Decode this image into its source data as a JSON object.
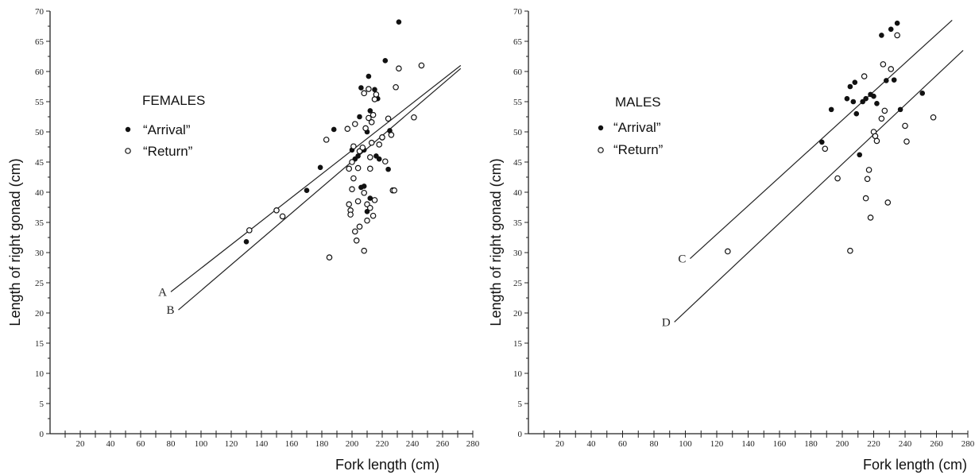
{
  "chart_data": [
    {
      "type": "scatter",
      "title": "",
      "panel_label": "FEMALES",
      "xlabel": "Fork length (cm)",
      "ylabel": "Length of right gonad (cm)",
      "xlim": [
        0,
        280
      ],
      "ylim": [
        0,
        70
      ],
      "x_ticks": [
        "20",
        "40",
        "60",
        "80",
        "100",
        "120",
        "140",
        "160",
        "180",
        "200",
        "220",
        "240",
        "260",
        "280"
      ],
      "y_ticks": [
        "0",
        "5",
        "10",
        "15",
        "20",
        "25",
        "30",
        "35",
        "40",
        "45",
        "50",
        "55",
        "60",
        "65",
        "70"
      ],
      "legend_position": "upper-left",
      "series": [
        {
          "name": "“Arrival”",
          "marker": "filled-circle",
          "points": [
            [
              130,
              31.8
            ],
            [
              170,
              40.3
            ],
            [
              179,
              44.1
            ],
            [
              188,
              50.4
            ],
            [
              200,
              47
            ],
            [
              202,
              45.5
            ],
            [
              204,
              46
            ],
            [
              205,
              52.5
            ],
            [
              206,
              57.3
            ],
            [
              208,
              47
            ],
            [
              208,
              41
            ],
            [
              210,
              50
            ],
            [
              211,
              59.2
            ],
            [
              212,
              53.5
            ],
            [
              212,
              39
            ],
            [
              210,
              36.8
            ],
            [
              215,
              57
            ],
            [
              216,
              46
            ],
            [
              217,
              55.5
            ],
            [
              218,
              45.5
            ],
            [
              220,
              49
            ],
            [
              222,
              61.8
            ],
            [
              224,
              43.8
            ],
            [
              225,
              50.2
            ],
            [
              231,
              68.2
            ],
            [
              206,
              40.8
            ]
          ]
        },
        {
          "name": "“Return”",
          "marker": "open-circle",
          "points": [
            [
              132,
              33.7
            ],
            [
              150,
              37
            ],
            [
              154,
              36
            ],
            [
              185,
              29.2
            ],
            [
              183,
              48.7
            ],
            [
              197,
              50.5
            ],
            [
              198,
              43.9
            ],
            [
              198,
              38
            ],
            [
              199,
              37
            ],
            [
              199,
              36.3
            ],
            [
              200,
              40.5
            ],
            [
              200,
              45
            ],
            [
              201,
              47.6
            ],
            [
              201,
              42.3
            ],
            [
              202,
              51.3
            ],
            [
              202,
              33.5
            ],
            [
              203,
              32
            ],
            [
              204,
              38.5
            ],
            [
              204,
              44
            ],
            [
              205,
              46.8
            ],
            [
              205,
              34.3
            ],
            [
              207,
              47.4
            ],
            [
              208,
              39.9
            ],
            [
              208,
              56.4
            ],
            [
              208,
              30.3
            ],
            [
              209,
              50.6
            ],
            [
              210,
              38
            ],
            [
              210,
              35.3
            ],
            [
              211,
              57.1
            ],
            [
              211,
              52.3
            ],
            [
              212,
              45.8
            ],
            [
              212,
              43.9
            ],
            [
              212,
              37.4
            ],
            [
              213,
              48.2
            ],
            [
              213,
              51.6
            ],
            [
              214,
              52.8
            ],
            [
              214,
              36.1
            ],
            [
              215,
              55.4
            ],
            [
              215,
              38.7
            ],
            [
              216,
              56.2
            ],
            [
              218,
              47.9
            ],
            [
              220,
              49.1
            ],
            [
              222,
              45.1
            ],
            [
              224,
              52.2
            ],
            [
              226,
              49.5
            ],
            [
              227,
              40.3
            ],
            [
              228,
              40.3
            ],
            [
              229,
              57.4
            ],
            [
              231,
              60.5
            ],
            [
              241,
              52.4
            ],
            [
              246,
              61
            ]
          ]
        }
      ],
      "lines": [
        {
          "label": "A",
          "x": [
            80,
            272
          ],
          "y": [
            23.5,
            61
          ]
        },
        {
          "label": "B",
          "x": [
            85,
            272
          ],
          "y": [
            20.5,
            60.5
          ]
        }
      ]
    },
    {
      "type": "scatter",
      "title": "",
      "panel_label": "MALES",
      "xlabel": "Fork length (cm)",
      "ylabel": "Length of right gonad (cm)",
      "xlim": [
        0,
        280
      ],
      "ylim": [
        0,
        70
      ],
      "x_ticks": [
        "20",
        "40",
        "60",
        "80",
        "100",
        "120",
        "140",
        "160",
        "180",
        "200",
        "220",
        "240",
        "260",
        "280"
      ],
      "y_ticks": [
        "0",
        "5",
        "10",
        "15",
        "20",
        "25",
        "30",
        "35",
        "40",
        "45",
        "50",
        "55",
        "60",
        "65",
        "70"
      ],
      "legend_position": "upper-left",
      "series": [
        {
          "name": "“Arrival”",
          "marker": "filled-circle",
          "points": [
            [
              187,
              48.3
            ],
            [
              193,
              53.7
            ],
            [
              203,
              55.5
            ],
            [
              205,
              57.5
            ],
            [
              207,
              55
            ],
            [
              208,
              58.2
            ],
            [
              209,
              53
            ],
            [
              211,
              46.2
            ],
            [
              213,
              55
            ],
            [
              215,
              55.5
            ],
            [
              218,
              56.2
            ],
            [
              220,
              55.9
            ],
            [
              222,
              54.7
            ],
            [
              225,
              66
            ],
            [
              228,
              58.5
            ],
            [
              231,
              67
            ],
            [
              233,
              58.6
            ],
            [
              235,
              68
            ],
            [
              237,
              53.7
            ],
            [
              251,
              56.4
            ]
          ]
        },
        {
          "name": "“Return”",
          "marker": "open-circle",
          "points": [
            [
              127,
              30.2
            ],
            [
              189,
              47.2
            ],
            [
              197,
              42.3
            ],
            [
              205,
              30.3
            ],
            [
              214,
              59.2
            ],
            [
              215,
              39
            ],
            [
              216,
              42.2
            ],
            [
              217,
              43.7
            ],
            [
              218,
              35.8
            ],
            [
              220,
              50
            ],
            [
              221,
              49.3
            ],
            [
              222,
              48.5
            ],
            [
              225,
              52.2
            ],
            [
              226,
              61.2
            ],
            [
              227,
              53.5
            ],
            [
              229,
              38.3
            ],
            [
              231,
              60.4
            ],
            [
              235,
              66
            ],
            [
              240,
              51
            ],
            [
              241,
              48.4
            ],
            [
              258,
              52.4
            ]
          ]
        }
      ],
      "lines": [
        {
          "label": "C",
          "x": [
            103,
            270
          ],
          "y": [
            29,
            68.5
          ]
        },
        {
          "label": "D",
          "x": [
            93,
            277
          ],
          "y": [
            18.5,
            63.5
          ]
        }
      ]
    }
  ]
}
